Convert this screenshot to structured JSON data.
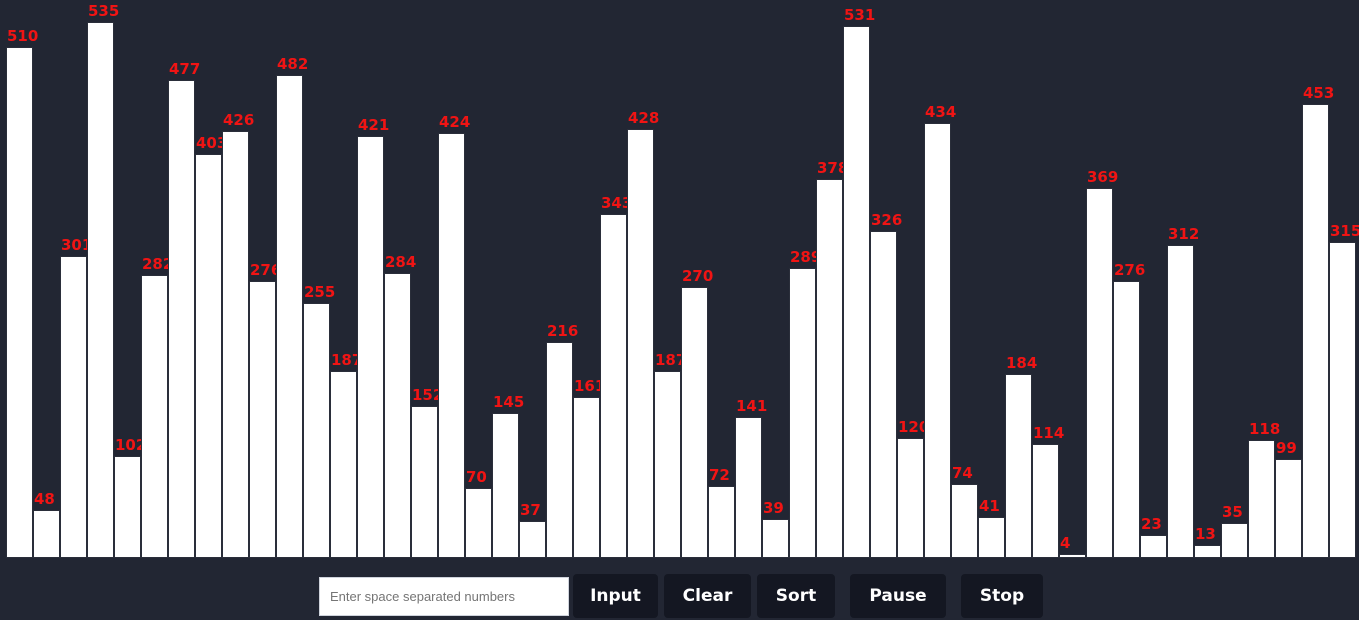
{
  "chart_data": {
    "type": "bar",
    "values": [
      510,
      48,
      301,
      535,
      102,
      282,
      477,
      403,
      426,
      276,
      482,
      255,
      187,
      421,
      284,
      152,
      424,
      70,
      145,
      37,
      216,
      161,
      343,
      428,
      187,
      270,
      72,
      141,
      39,
      289,
      378,
      531,
      326,
      120,
      434,
      74,
      41,
      184,
      114,
      4,
      369,
      276,
      23,
      312,
      13,
      35,
      118,
      99,
      453,
      315
    ],
    "ylim": [
      0,
      535
    ],
    "bar_color": "#ffffff",
    "label_color": "#f01414"
  },
  "controls": {
    "input_placeholder": "Enter space separated numbers",
    "input_value": "",
    "input_label": "Input",
    "clear_label": "Clear",
    "sort_label": "Sort",
    "pause_label": "Pause",
    "stop_label": "Stop"
  },
  "colors": {
    "background": "#222633",
    "button_bg": "#141722"
  }
}
